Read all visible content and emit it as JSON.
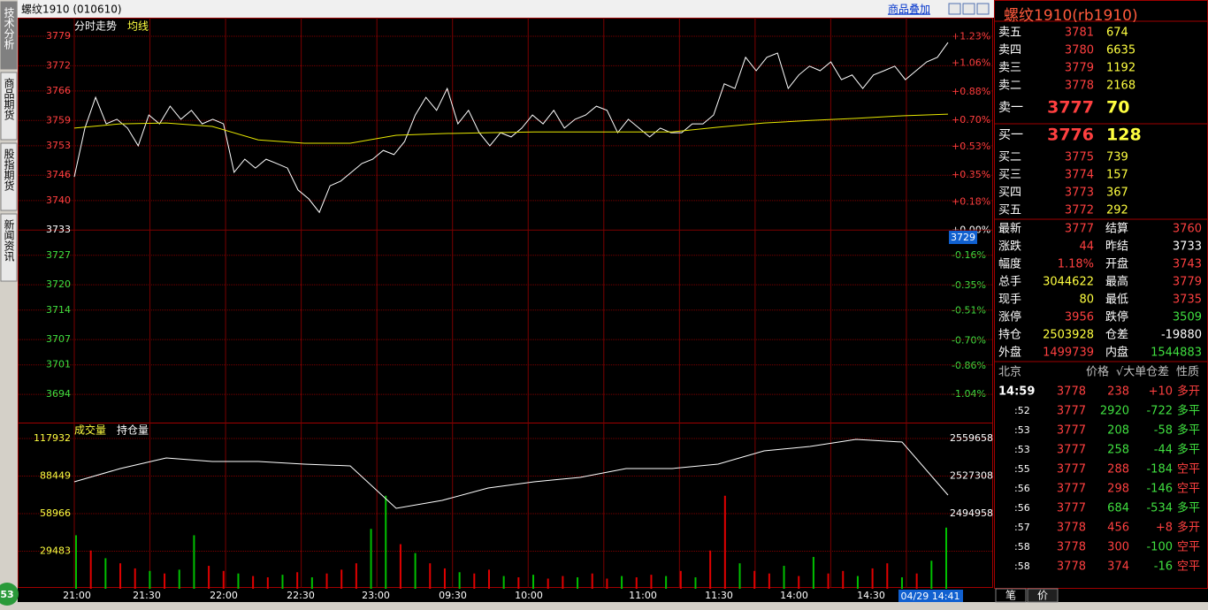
{
  "window": {
    "title": "螺纹1910 (010610)",
    "overlay_link": "商品叠加"
  },
  "side_tabs": [
    "技术分析",
    "商品期货",
    "股指期货",
    "新闻资讯"
  ],
  "badge": "53",
  "price_chart": {
    "type": "line",
    "x_labels": [
      "21:00",
      "21:30",
      "22:00",
      "22:30",
      "23:00",
      "09:30",
      "10:00",
      "11:00",
      "11:30",
      "14:00",
      "14:30"
    ],
    "ylim": [
      3687.3,
      3783.4
    ],
    "yticks": [
      3779,
      3772,
      3766,
      3759,
      3753,
      3746,
      3740,
      3733,
      3727,
      3720,
      3714,
      3707,
      3701,
      3694
    ],
    "y2lim": [
      -1.22,
      1.35
    ],
    "y2ticks": [
      {
        "value": 1.23,
        "label": "+1.23%"
      },
      {
        "value": 1.06,
        "label": "+1.06%"
      },
      {
        "value": 0.88,
        "label": "+0.88%"
      },
      {
        "value": 0.7,
        "label": "+0.70%"
      },
      {
        "value": 0.53,
        "label": "+0.53%"
      },
      {
        "value": 0.35,
        "label": "+0.35%"
      },
      {
        "value": 0.18,
        "label": "+0.18%"
      },
      {
        "value": 0,
        "label": "+0.00%"
      },
      {
        "value": -0.16,
        "label": "-0.16%"
      },
      {
        "value": -0.35,
        "label": "-0.35%"
      },
      {
        "value": -0.51,
        "label": "-0.51%"
      },
      {
        "value": -0.7,
        "label": "-0.70%"
      },
      {
        "value": -0.86,
        "label": "-0.86%"
      },
      {
        "value": -1.04,
        "label": "-1.04%"
      }
    ],
    "series": [
      {
        "name": "分时走势",
        "color": "#ffffff",
        "values": [
          3745.6,
          3757.2,
          3764.5,
          3758.2,
          3759.3,
          3757.2,
          3753,
          3760.3,
          3758.2,
          3762.4,
          3759.3,
          3761.4,
          3758.2,
          3759.3,
          3758.2,
          3746.7,
          3749.8,
          3747.7,
          3749.8,
          3748.8,
          3747.7,
          3742.5,
          3740.4,
          3737.2,
          3743.5,
          3744.6,
          3746.7,
          3748.8,
          3749.8,
          3751.9,
          3750.9,
          3754,
          3760.3,
          3764.5,
          3761.4,
          3766.6,
          3758.2,
          3761.4,
          3756.1,
          3753,
          3756.1,
          3755.1,
          3757.2,
          3760.3,
          3758.2,
          3761.4,
          3757.2,
          3759.3,
          3760.3,
          3762.4,
          3761.4,
          3756.1,
          3759.3,
          3757.2,
          3755.1,
          3757.2,
          3756.1,
          3756.1,
          3758.2,
          3758.2,
          3760.3,
          3767.7,
          3766.6,
          3774,
          3770.8,
          3774,
          3775,
          3766.6,
          3769.8,
          3771.9,
          3770.8,
          3772.9,
          3768.7,
          3769.8,
          3766.6,
          3769.8,
          3770.8,
          3771.9,
          3768.7,
          3770.8,
          3772.9,
          3774,
          3777.5
        ]
      },
      {
        "name": "均线",
        "color": "#e8e800",
        "values": [
          3757.2,
          3758.2,
          3758.4,
          3757.6,
          3754.4,
          3753.6,
          3753.6,
          3755.5,
          3755.9,
          3756.1,
          3756.3,
          3756.3,
          3756.3,
          3756.3,
          3757.4,
          3758.4,
          3759,
          3759.5,
          3760.1,
          3760.5
        ]
      }
    ],
    "cursor_price": 3729,
    "cursor_time": "04/29 14:41"
  },
  "volume_chart": {
    "type": "bar",
    "ylim": [
      0,
      129032
    ],
    "yticks": [
      29483,
      58966,
      88449,
      117932
    ],
    "y2lim": [
      2430254,
      2571834
    ],
    "y2ticks": [
      2494958,
      2527308,
      2559658
    ],
    "series": [
      {
        "name": "成交量",
        "type": "bar",
        "values": [
          42000,
          30000,
          24000,
          20000,
          16000,
          14000,
          12000,
          15000,
          42000,
          18000,
          14000,
          12000,
          10000,
          9000,
          11000,
          13000,
          9000,
          12000,
          15000,
          20000,
          47000,
          73000,
          35000,
          28000,
          20000,
          16000,
          13000,
          12000,
          15000,
          10000,
          9000,
          11000,
          8000,
          10000,
          9000,
          12000,
          8000,
          10000,
          9000,
          11000,
          10000,
          14000,
          9000,
          30000,
          73000,
          20000,
          14000,
          12000,
          18000,
          10000,
          25000,
          12000,
          14000,
          10000,
          16000,
          20000,
          9000,
          12000,
          22000,
          48000
        ],
        "colors": [
          "#00c000",
          "#e00000",
          "#00c000",
          "#e00000",
          "#e00000",
          "#00c000",
          "#e00000",
          "#00c000",
          "#00c000",
          "#e00000",
          "#e00000",
          "#00c000",
          "#e00000",
          "#e00000",
          "#00c000",
          "#e00000",
          "#00c000",
          "#e00000",
          "#e00000",
          "#e00000",
          "#00c000",
          "#00c000",
          "#e00000",
          "#00c000",
          "#e00000",
          "#e00000",
          "#00c000",
          "#e00000",
          "#e00000",
          "#00c000",
          "#e00000",
          "#00c000",
          "#e00000",
          "#e00000",
          "#00c000",
          "#e00000",
          "#e00000",
          "#00c000",
          "#e00000",
          "#e00000",
          "#00c000",
          "#e00000",
          "#00c000",
          "#e00000",
          "#e00000",
          "#00c000",
          "#e00000",
          "#e00000",
          "#00c000",
          "#e00000",
          "#00c000",
          "#e00000",
          "#e00000",
          "#00c000",
          "#e00000",
          "#e00000",
          "#00c000",
          "#e00000",
          "#00c000",
          "#00c000"
        ]
      },
      {
        "name": "持仓量",
        "color": "#ffffff",
        "axis": "y2",
        "values": [
          2522360,
          2533780,
          2542910,
          2539867,
          2539867,
          2537580,
          2536060,
          2499524,
          2506374,
          2517000,
          2522360,
          2526166,
          2533780,
          2533780,
          2537580,
          2549000,
          2552800,
          2558900,
          2556600,
          2510940
        ]
      }
    ]
  },
  "quote": {
    "title": "螺纹1910(rb1910)",
    "asks": [
      {
        "label": "卖五",
        "price": 3781,
        "volume": 674
      },
      {
        "label": "卖四",
        "price": 3780,
        "volume": 6635
      },
      {
        "label": "卖三",
        "price": 3779,
        "volume": 1192
      },
      {
        "label": "卖二",
        "price": 3778,
        "volume": 2168
      },
      {
        "label": "卖一",
        "price": 3777,
        "volume": 70
      }
    ],
    "bids": [
      {
        "label": "买一",
        "price": 3776,
        "volume": 128
      },
      {
        "label": "买二",
        "price": 3775,
        "volume": 739
      },
      {
        "label": "买三",
        "price": 3774,
        "volume": 157
      },
      {
        "label": "买四",
        "price": 3773,
        "volume": 367
      },
      {
        "label": "买五",
        "price": 3772,
        "volume": 292
      }
    ],
    "stats": [
      {
        "label": "最新",
        "value": 3777,
        "color": "#ff4040"
      },
      {
        "label": "结算",
        "value": 3760,
        "color": "#ff4040"
      },
      {
        "label": "涨跌",
        "value": 44,
        "color": "#ff4040"
      },
      {
        "label": "昨结",
        "value": 3733,
        "color": "#ffffff"
      },
      {
        "label": "幅度",
        "value": "1.18%",
        "color": "#ff4040"
      },
      {
        "label": "开盘",
        "value": 3743,
        "color": "#ff4040"
      },
      {
        "label": "总手",
        "value": 3044622,
        "color": "#ffff40"
      },
      {
        "label": "最高",
        "value": 3779,
        "color": "#ff4040"
      },
      {
        "label": "现手",
        "value": 80,
        "color": "#ffff40"
      },
      {
        "label": "最低",
        "value": 3735,
        "color": "#ff4040"
      },
      {
        "label": "涨停",
        "value": 3956,
        "color": "#ff4040"
      },
      {
        "label": "跌停",
        "value": 3509,
        "color": "#40e040"
      },
      {
        "label": "持仓",
        "value": 2503928,
        "color": "#ffff40"
      },
      {
        "label": "仓差",
        "value": -19880,
        "color": "#ffffff"
      },
      {
        "label": "外盘",
        "value": 1499739,
        "color": "#ff4040"
      },
      {
        "label": "内盘",
        "value": 1544883,
        "color": "#40e040"
      }
    ]
  },
  "ticks": {
    "header": [
      "北京",
      "价格",
      "√大单",
      "仓差",
      "性质"
    ],
    "rows": [
      {
        "time": "14:59",
        "price": 3778,
        "volume": 238,
        "diff": "+10",
        "nature": "多开",
        "color": "#ff4040"
      },
      {
        "time": ":52",
        "price": 3777,
        "volume": 2920,
        "diff": -722,
        "nature": "多平",
        "color": "#40e040"
      },
      {
        "time": ":53",
        "price": 3777,
        "volume": 208,
        "diff": -58,
        "nature": "多平",
        "color": "#40e040"
      },
      {
        "time": ":53",
        "price": 3777,
        "volume": 258,
        "diff": -44,
        "nature": "多平",
        "color": "#40e040"
      },
      {
        "time": ":55",
        "price": 3777,
        "volume": 288,
        "diff": -184,
        "nature": "空平",
        "color": "#ff4040"
      },
      {
        "time": ":56",
        "price": 3777,
        "volume": 298,
        "diff": -146,
        "nature": "空平",
        "color": "#ff4040"
      },
      {
        "time": ":56",
        "price": 3777,
        "volume": 684,
        "diff": -534,
        "nature": "多平",
        "color": "#40e040"
      },
      {
        "time": ":57",
        "price": 3778,
        "volume": 456,
        "diff": "+8",
        "nature": "多开",
        "color": "#ff4040"
      },
      {
        "time": ":58",
        "price": 3778,
        "volume": 300,
        "diff": -100,
        "nature": "空平",
        "color": "#ff4040"
      },
      {
        "time": ":58",
        "price": 3778,
        "volume": 374,
        "diff": -16,
        "nature": "空平",
        "color": "#ff4040"
      }
    ]
  },
  "bottom_tabs": [
    "笔",
    "价"
  ]
}
